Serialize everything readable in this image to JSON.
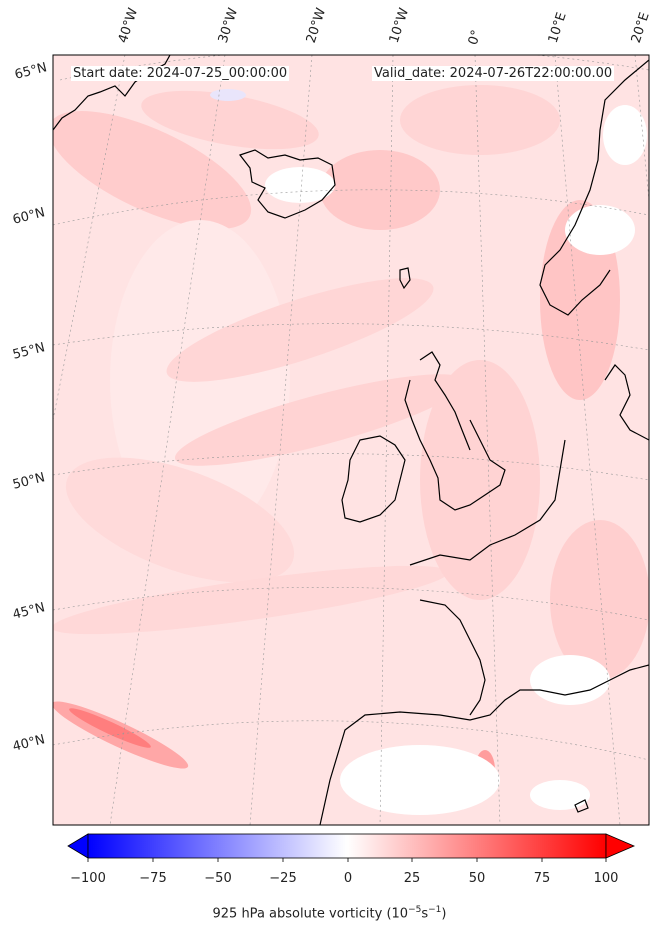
{
  "header": {
    "start_date": "Start date: 2024-07-25_00:00:00",
    "valid_date": "Valid_date: 2024-07-26T22:00:00.00"
  },
  "longitude_labels": [
    "40°W",
    "30°W",
    "20°W",
    "10°W",
    "0°",
    "10°E",
    "20°E"
  ],
  "latitude_labels": [
    "65°N",
    "60°N",
    "55°N",
    "50°N",
    "45°N",
    "40°N"
  ],
  "colorbar": {
    "ticks": [
      "−100",
      "−75",
      "−50",
      "−25",
      "0",
      "25",
      "50",
      "75",
      "100"
    ],
    "label_text": "925 hPa absolute vorticity (10",
    "label_exp1": "−5",
    "label_mid": "s",
    "label_exp2": "−1",
    "label_end": ")",
    "vmin": -100,
    "vmax": 100,
    "colormap": "bwr",
    "extend": "both"
  },
  "colors": {
    "negative": "#0000ff",
    "zero": "#ffffff",
    "positive": "#ff0000",
    "coastline": "#000000"
  }
}
